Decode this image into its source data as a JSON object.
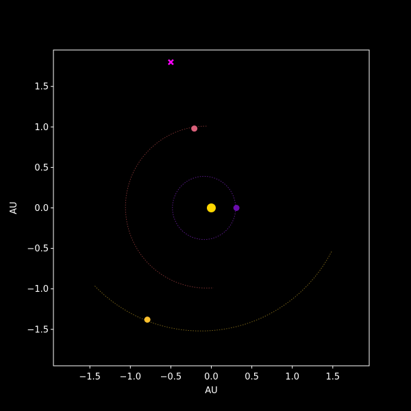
{
  "chart_data": {
    "type": "scatter",
    "title": "",
    "xlabel": "AU",
    "ylabel": "AU",
    "xlim": [
      -1.95,
      1.95
    ],
    "ylim": [
      -1.95,
      1.95
    ],
    "grid": false,
    "background": "#000000",
    "axis_color": "#ffffff",
    "x_ticks": [
      -1.5,
      -1.0,
      -0.5,
      0.0,
      0.5,
      1.0,
      1.5
    ],
    "x_tick_labels": [
      "−1.5",
      "−1.0",
      "−0.5",
      "0.0",
      "0.5",
      "1.0",
      "1.5"
    ],
    "y_ticks": [
      -1.5,
      -1.0,
      -0.5,
      0.0,
      0.5,
      1.0,
      1.5
    ],
    "y_tick_labels": [
      "−1.5",
      "−1.0",
      "−0.5",
      "0.0",
      "0.5",
      "1.0",
      "1.5"
    ],
    "sun": {
      "x": 0.0,
      "y": 0.0,
      "color": "#ffd700"
    },
    "bodies": [
      {
        "x": 0.31,
        "y": 0.0,
        "color": "#6a0dad"
      },
      {
        "x": -0.21,
        "y": 0.98,
        "color": "#d9607a"
      },
      {
        "x": -0.79,
        "y": -1.38,
        "color": "#fbc02d"
      }
    ],
    "comet": {
      "x": -0.5,
      "y": 1.8,
      "color": "#ff00ff",
      "marker": "x"
    },
    "orbits": [
      {
        "color": "#5a1a8a",
        "center": [
          -0.09,
          0.0
        ],
        "radius": 0.39,
        "start_deg": 0,
        "end_deg": 360
      },
      {
        "color": "#7a3030",
        "center": [
          -0.06,
          0.01
        ],
        "radius": 1.0,
        "start_deg": 90,
        "end_deg": 275
      },
      {
        "color": "#7a6418",
        "center": [
          -0.13,
          0.3
        ],
        "radius": 1.82,
        "start_deg": -136,
        "end_deg": -27
      }
    ]
  }
}
